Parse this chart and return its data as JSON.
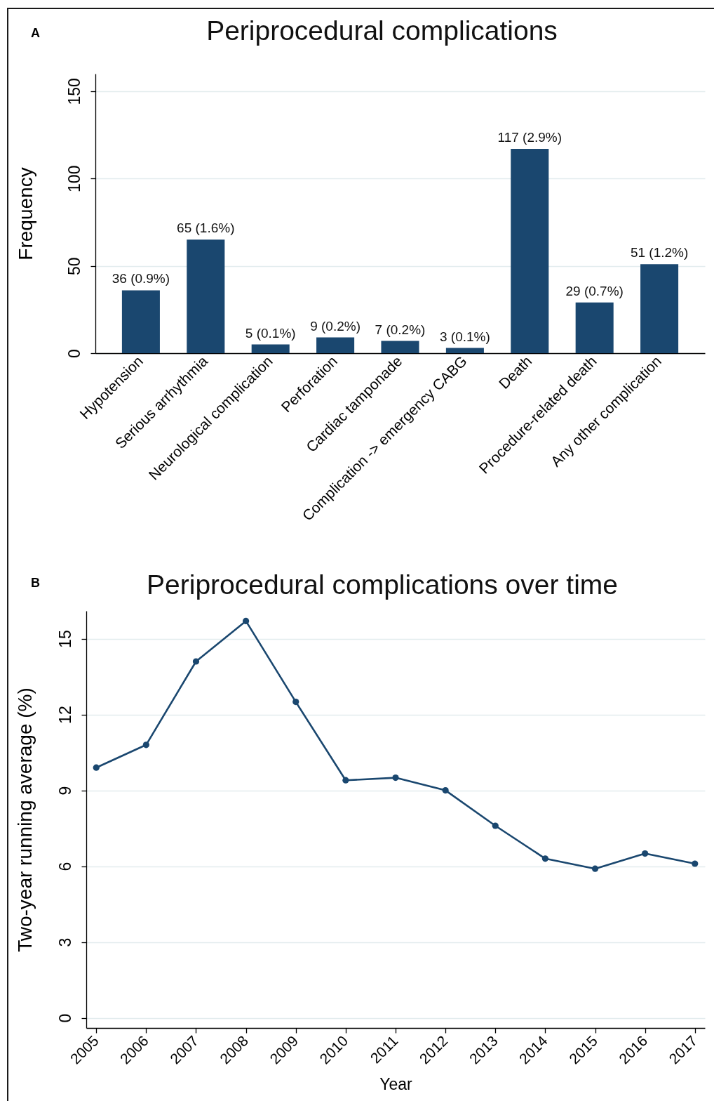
{
  "chart_data": [
    {
      "type": "bar",
      "title": "Periprocedural complications",
      "ylabel": "Frequency",
      "annotations": [
        "A"
      ],
      "categories": [
        "Hypotension",
        "Serious arrhythmia",
        "Neurological complication",
        "Perforation",
        "Cardiac tamponade",
        "Complication -> emergency CABG",
        "Death",
        "Procedure-related death",
        "Any other complication"
      ],
      "values": [
        36,
        65,
        5,
        9,
        7,
        3,
        117,
        29,
        51
      ],
      "color": "#1a476f",
      "value_labels": [
        "36 (0.9%)",
        "65 (1.6%)",
        "5 (0.1%)",
        "9 (0.2%)",
        "7 (0.2%)",
        "3 (0.1%)",
        "117 (2.9%)",
        "29 (0.7%)",
        "51 (1.2%)"
      ],
      "ylim": [
        0,
        160
      ],
      "yticks": [
        0,
        50,
        100,
        150
      ],
      "grid": "y"
    },
    {
      "type": "line",
      "title": "Periprocedural complications over time",
      "xlabel": "Year",
      "ylabel": "Two-year running average (%)",
      "annotations": [
        "B"
      ],
      "x": [
        2005,
        2006,
        2007,
        2008,
        2009,
        2010,
        2011,
        2012,
        2013,
        2014,
        2015,
        2016,
        2017
      ],
      "values": [
        9.9,
        10.8,
        14.1,
        15.7,
        12.5,
        9.4,
        9.5,
        9.0,
        7.6,
        6.3,
        5.9,
        6.5,
        6.1
      ],
      "color": "#1a476f",
      "marker": "circle",
      "xlim": [
        2004.8,
        2017.2
      ],
      "xticks": [
        2005,
        2006,
        2007,
        2008,
        2009,
        2010,
        2011,
        2012,
        2013,
        2014,
        2015,
        2016,
        2017
      ],
      "ylim": [
        -0.4,
        16.1
      ],
      "yticks": [
        0,
        3,
        6,
        9,
        12,
        15
      ],
      "grid": "y"
    }
  ]
}
